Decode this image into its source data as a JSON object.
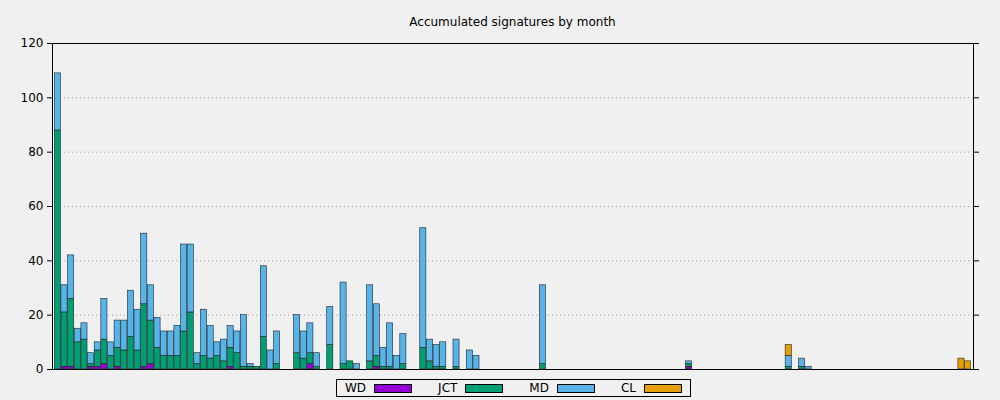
{
  "chart_data": {
    "type": "bar",
    "title": "Accumulated signatures by month",
    "stacked": true,
    "grid": true,
    "legend": "bottom",
    "tick_labels": "y",
    "ylim": [
      0,
      120
    ],
    "yticks": [
      0,
      20,
      40,
      60,
      80,
      100,
      120
    ],
    "categories": [
      null,
      null,
      null,
      null,
      null,
      null,
      null,
      null,
      null,
      null,
      null,
      null,
      null,
      null,
      null,
      null,
      null,
      null,
      null,
      null,
      null,
      null,
      null,
      null,
      null,
      null,
      null,
      null,
      null,
      null,
      null,
      null,
      null,
      null,
      null,
      null,
      null,
      null,
      null,
      null,
      null,
      null,
      null,
      null,
      null,
      null,
      null,
      null,
      null,
      null,
      null,
      null,
      null,
      null,
      null,
      null,
      null,
      null,
      null,
      null,
      null,
      null,
      null,
      null,
      null,
      null,
      null,
      null,
      null,
      null,
      null,
      null,
      null,
      null,
      null,
      null,
      null,
      null,
      null,
      null,
      null,
      null,
      null,
      null,
      null,
      null,
      null,
      null,
      null,
      null,
      null,
      null,
      null,
      null,
      null,
      null,
      null,
      null,
      null,
      null,
      null,
      null,
      null,
      null,
      null,
      null,
      null,
      null,
      null,
      null,
      null,
      null,
      null,
      null,
      null,
      null,
      null,
      null,
      null,
      null,
      null,
      null,
      null,
      null,
      null,
      null,
      null,
      null,
      null,
      null,
      null,
      null,
      null,
      null,
      null,
      null,
      null,
      null
    ],
    "series": [
      {
        "name": "WD",
        "color": "#9400d3",
        "values": [
          0,
          1,
          1,
          0,
          0,
          1,
          1,
          2,
          0,
          1,
          0,
          0,
          0,
          1,
          2,
          0,
          0,
          0,
          0,
          0,
          0,
          0,
          0,
          0,
          0,
          0,
          1,
          0,
          0,
          0,
          0,
          0,
          0,
          0,
          0,
          0,
          0,
          0,
          2,
          0,
          0,
          0,
          0,
          0,
          0,
          0,
          0,
          0,
          1,
          0,
          0,
          0,
          0,
          0,
          0,
          0,
          0,
          0,
          0,
          0,
          0,
          0,
          0,
          0,
          0,
          0,
          0,
          0,
          0,
          0,
          0,
          0,
          0,
          0,
          0,
          0,
          0,
          0,
          0,
          0,
          0,
          0,
          0,
          0,
          0,
          0,
          0,
          0,
          0,
          0,
          0,
          0,
          0,
          0,
          0,
          1,
          0,
          0,
          0,
          0,
          0,
          0,
          0,
          0,
          0,
          0,
          0,
          0,
          0,
          0,
          0,
          0,
          0,
          0,
          0,
          0,
          0,
          0,
          0,
          0,
          0,
          0,
          0,
          0,
          0,
          0,
          0,
          0,
          0,
          0,
          0,
          0,
          0,
          0,
          0,
          0,
          0,
          0
        ]
      },
      {
        "name": "JCT",
        "color": "#009e73",
        "values": [
          88,
          20,
          25,
          10,
          11,
          1,
          6,
          9,
          5,
          7,
          7,
          12,
          7,
          23,
          16,
          8,
          5,
          5,
          5,
          14,
          21,
          2,
          5,
          4,
          5,
          3,
          7,
          6,
          1,
          1,
          1,
          12,
          0,
          2,
          0,
          0,
          6,
          4,
          4,
          1,
          0,
          9,
          0,
          2,
          3,
          0,
          0,
          3,
          4,
          1,
          1,
          0,
          2,
          0,
          0,
          8,
          3,
          1,
          1,
          0,
          1,
          0,
          0,
          0,
          0,
          0,
          0,
          0,
          0,
          0,
          0,
          0,
          0,
          2,
          0,
          0,
          0,
          0,
          0,
          0,
          0,
          0,
          0,
          0,
          0,
          0,
          0,
          0,
          0,
          0,
          0,
          0,
          0,
          0,
          0,
          1,
          0,
          0,
          0,
          0,
          0,
          0,
          0,
          0,
          0,
          0,
          0,
          0,
          0,
          0,
          1,
          0,
          1,
          0,
          0,
          0,
          0,
          0,
          0,
          0,
          0,
          0,
          0,
          0,
          0,
          0,
          0,
          0,
          0,
          0,
          0,
          0,
          0,
          0,
          0,
          0,
          0,
          0
        ]
      },
      {
        "name": "MD",
        "color": "#56b4e9",
        "values": [
          21,
          10,
          16,
          5,
          6,
          4,
          3,
          15,
          5,
          10,
          11,
          17,
          15,
          26,
          13,
          11,
          9,
          9,
          11,
          32,
          25,
          4,
          17,
          12,
          5,
          8,
          8,
          8,
          19,
          1,
          0,
          26,
          7,
          12,
          0,
          0,
          14,
          10,
          11,
          5,
          0,
          14,
          0,
          30,
          0,
          2,
          0,
          28,
          19,
          7,
          16,
          5,
          11,
          0,
          0,
          44,
          8,
          8,
          9,
          0,
          10,
          0,
          7,
          5,
          0,
          0,
          0,
          0,
          0,
          0,
          0,
          0,
          0,
          29,
          0,
          0,
          0,
          0,
          0,
          0,
          0,
          0,
          0,
          0,
          0,
          0,
          0,
          0,
          0,
          0,
          0,
          0,
          0,
          0,
          0,
          1,
          0,
          0,
          0,
          0,
          0,
          0,
          0,
          0,
          0,
          0,
          0,
          0,
          0,
          0,
          4,
          0,
          3,
          1,
          0,
          0,
          0,
          0,
          0,
          0,
          0,
          0,
          0,
          0,
          0,
          0,
          0,
          0,
          0,
          0,
          0,
          0,
          0,
          0,
          0,
          0,
          0,
          0
        ]
      },
      {
        "name": "CL",
        "color": "#e69f00",
        "values": [
          0,
          0,
          0,
          0,
          0,
          0,
          0,
          0,
          0,
          0,
          0,
          0,
          0,
          0,
          0,
          0,
          0,
          0,
          0,
          0,
          0,
          0,
          0,
          0,
          0,
          0,
          0,
          0,
          0,
          0,
          0,
          0,
          0,
          0,
          0,
          0,
          0,
          0,
          0,
          0,
          0,
          0,
          0,
          0,
          0,
          0,
          0,
          0,
          0,
          0,
          0,
          0,
          0,
          0,
          0,
          0,
          0,
          0,
          0,
          0,
          0,
          0,
          0,
          0,
          0,
          0,
          0,
          0,
          0,
          0,
          0,
          0,
          0,
          0,
          0,
          0,
          0,
          0,
          0,
          0,
          0,
          0,
          0,
          0,
          0,
          0,
          0,
          0,
          0,
          0,
          0,
          0,
          0,
          0,
          0,
          0,
          0,
          0,
          0,
          0,
          0,
          0,
          0,
          0,
          0,
          0,
          0,
          0,
          0,
          0,
          4,
          0,
          0,
          0,
          0,
          0,
          0,
          0,
          0,
          0,
          0,
          0,
          0,
          0,
          0,
          0,
          0,
          0,
          0,
          0,
          0,
          0,
          0,
          0,
          0,
          0,
          4,
          3
        ]
      }
    ]
  }
}
